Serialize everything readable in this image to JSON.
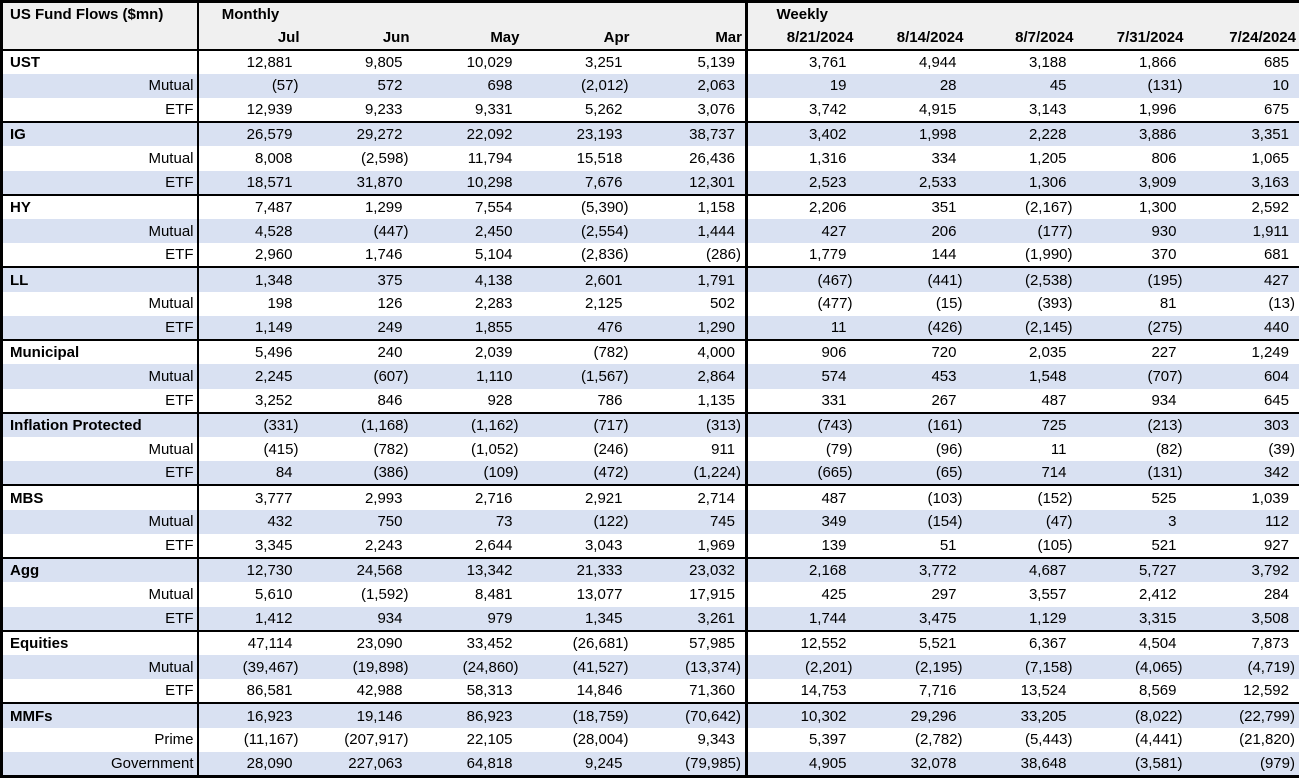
{
  "chart_data": {
    "type": "table",
    "title": "US Fund Flows ($mn)",
    "colors": {
      "header_bg": "#f0f0f0",
      "row_shade": "#d9e1f2",
      "row_plain": "#ffffff",
      "border": "#000000",
      "text": "#000000"
    },
    "column_groups": [
      {
        "label": "Monthly",
        "columns": [
          "Jul",
          "Jun",
          "May",
          "Apr",
          "Mar"
        ]
      },
      {
        "label": "Weekly",
        "columns": [
          "8/21/2024",
          "8/14/2024",
          "8/7/2024",
          "7/31/2024",
          "7/24/2024"
        ]
      }
    ],
    "rows": [
      {
        "label": "UST",
        "level": "group",
        "monthly": [
          "12,881",
          "9,805",
          "10,029",
          "3,251",
          "5,139"
        ],
        "weekly": [
          "3,761",
          "4,944",
          "3,188",
          "1,866",
          "685"
        ]
      },
      {
        "label": "Mutual",
        "level": "sub",
        "monthly": [
          "(57)",
          "572",
          "698",
          "(2,012)",
          "2,063"
        ],
        "weekly": [
          "19",
          "28",
          "45",
          "(131)",
          "10"
        ]
      },
      {
        "label": "ETF",
        "level": "sub",
        "monthly": [
          "12,939",
          "9,233",
          "9,331",
          "5,262",
          "3,076"
        ],
        "weekly": [
          "3,742",
          "4,915",
          "3,143",
          "1,996",
          "675"
        ]
      },
      {
        "label": "IG",
        "level": "group",
        "monthly": [
          "26,579",
          "29,272",
          "22,092",
          "23,193",
          "38,737"
        ],
        "weekly": [
          "3,402",
          "1,998",
          "2,228",
          "3,886",
          "3,351"
        ]
      },
      {
        "label": "Mutual",
        "level": "sub",
        "monthly": [
          "8,008",
          "(2,598)",
          "11,794",
          "15,518",
          "26,436"
        ],
        "weekly": [
          "1,316",
          "334",
          "1,205",
          "806",
          "1,065"
        ]
      },
      {
        "label": "ETF",
        "level": "sub",
        "monthly": [
          "18,571",
          "31,870",
          "10,298",
          "7,676",
          "12,301"
        ],
        "weekly": [
          "2,523",
          "2,533",
          "1,306",
          "3,909",
          "3,163"
        ]
      },
      {
        "label": "HY",
        "level": "group",
        "monthly": [
          "7,487",
          "1,299",
          "7,554",
          "(5,390)",
          "1,158"
        ],
        "weekly": [
          "2,206",
          "351",
          "(2,167)",
          "1,300",
          "2,592"
        ]
      },
      {
        "label": "Mutual",
        "level": "sub",
        "monthly": [
          "4,528",
          "(447)",
          "2,450",
          "(2,554)",
          "1,444"
        ],
        "weekly": [
          "427",
          "206",
          "(177)",
          "930",
          "1,911"
        ]
      },
      {
        "label": "ETF",
        "level": "sub",
        "monthly": [
          "2,960",
          "1,746",
          "5,104",
          "(2,836)",
          "(286)"
        ],
        "weekly": [
          "1,779",
          "144",
          "(1,990)",
          "370",
          "681"
        ]
      },
      {
        "label": "LL",
        "level": "group",
        "monthly": [
          "1,348",
          "375",
          "4,138",
          "2,601",
          "1,791"
        ],
        "weekly": [
          "(467)",
          "(441)",
          "(2,538)",
          "(195)",
          "427"
        ]
      },
      {
        "label": "Mutual",
        "level": "sub",
        "monthly": [
          "198",
          "126",
          "2,283",
          "2,125",
          "502"
        ],
        "weekly": [
          "(477)",
          "(15)",
          "(393)",
          "81",
          "(13)"
        ]
      },
      {
        "label": "ETF",
        "level": "sub",
        "monthly": [
          "1,149",
          "249",
          "1,855",
          "476",
          "1,290"
        ],
        "weekly": [
          "11",
          "(426)",
          "(2,145)",
          "(275)",
          "440"
        ]
      },
      {
        "label": "Municipal",
        "level": "group",
        "monthly": [
          "5,496",
          "240",
          "2,039",
          "(782)",
          "4,000"
        ],
        "weekly": [
          "906",
          "720",
          "2,035",
          "227",
          "1,249"
        ]
      },
      {
        "label": "Mutual",
        "level": "sub",
        "monthly": [
          "2,245",
          "(607)",
          "1,110",
          "(1,567)",
          "2,864"
        ],
        "weekly": [
          "574",
          "453",
          "1,548",
          "(707)",
          "604"
        ]
      },
      {
        "label": "ETF",
        "level": "sub",
        "monthly": [
          "3,252",
          "846",
          "928",
          "786",
          "1,135"
        ],
        "weekly": [
          "331",
          "267",
          "487",
          "934",
          "645"
        ]
      },
      {
        "label": "Inflation Protected",
        "level": "group",
        "monthly": [
          "(331)",
          "(1,168)",
          "(1,162)",
          "(717)",
          "(313)"
        ],
        "weekly": [
          "(743)",
          "(161)",
          "725",
          "(213)",
          "303"
        ]
      },
      {
        "label": "Mutual",
        "level": "sub",
        "monthly": [
          "(415)",
          "(782)",
          "(1,052)",
          "(246)",
          "911"
        ],
        "weekly": [
          "(79)",
          "(96)",
          "11",
          "(82)",
          "(39)"
        ]
      },
      {
        "label": "ETF",
        "level": "sub",
        "monthly": [
          "84",
          "(386)",
          "(109)",
          "(472)",
          "(1,224)"
        ],
        "weekly": [
          "(665)",
          "(65)",
          "714",
          "(131)",
          "342"
        ]
      },
      {
        "label": "MBS",
        "level": "group",
        "monthly": [
          "3,777",
          "2,993",
          "2,716",
          "2,921",
          "2,714"
        ],
        "weekly": [
          "487",
          "(103)",
          "(152)",
          "525",
          "1,039"
        ]
      },
      {
        "label": "Mutual",
        "level": "sub",
        "monthly": [
          "432",
          "750",
          "73",
          "(122)",
          "745"
        ],
        "weekly": [
          "349",
          "(154)",
          "(47)",
          "3",
          "112"
        ]
      },
      {
        "label": "ETF",
        "level": "sub",
        "monthly": [
          "3,345",
          "2,243",
          "2,644",
          "3,043",
          "1,969"
        ],
        "weekly": [
          "139",
          "51",
          "(105)",
          "521",
          "927"
        ]
      },
      {
        "label": "Agg",
        "level": "group",
        "monthly": [
          "12,730",
          "24,568",
          "13,342",
          "21,333",
          "23,032"
        ],
        "weekly": [
          "2,168",
          "3,772",
          "4,687",
          "5,727",
          "3,792"
        ]
      },
      {
        "label": "Mutual",
        "level": "sub",
        "monthly": [
          "5,610",
          "(1,592)",
          "8,481",
          "13,077",
          "17,915"
        ],
        "weekly": [
          "425",
          "297",
          "3,557",
          "2,412",
          "284"
        ]
      },
      {
        "label": "ETF",
        "level": "sub",
        "monthly": [
          "1,412",
          "934",
          "979",
          "1,345",
          "3,261"
        ],
        "weekly": [
          "1,744",
          "3,475",
          "1,129",
          "3,315",
          "3,508"
        ]
      },
      {
        "label": "Equities",
        "level": "group",
        "monthly": [
          "47,114",
          "23,090",
          "33,452",
          "(26,681)",
          "57,985"
        ],
        "weekly": [
          "12,552",
          "5,521",
          "6,367",
          "4,504",
          "7,873"
        ]
      },
      {
        "label": "Mutual",
        "level": "sub",
        "monthly": [
          "(39,467)",
          "(19,898)",
          "(24,860)",
          "(41,527)",
          "(13,374)"
        ],
        "weekly": [
          "(2,201)",
          "(2,195)",
          "(7,158)",
          "(4,065)",
          "(4,719)"
        ]
      },
      {
        "label": "ETF",
        "level": "sub",
        "monthly": [
          "86,581",
          "42,988",
          "58,313",
          "14,846",
          "71,360"
        ],
        "weekly": [
          "14,753",
          "7,716",
          "13,524",
          "8,569",
          "12,592"
        ]
      },
      {
        "label": "MMFs",
        "level": "group",
        "monthly": [
          "16,923",
          "19,146",
          "86,923",
          "(18,759)",
          "(70,642)"
        ],
        "weekly": [
          "10,302",
          "29,296",
          "33,205",
          "(8,022)",
          "(22,799)"
        ]
      },
      {
        "label": "Prime",
        "level": "sub",
        "monthly": [
          "(11,167)",
          "(207,917)",
          "22,105",
          "(28,004)",
          "9,343"
        ],
        "weekly": [
          "5,397",
          "(2,782)",
          "(5,443)",
          "(4,441)",
          "(21,820)"
        ]
      },
      {
        "label": "Government",
        "level": "sub",
        "monthly": [
          "28,090",
          "227,063",
          "64,818",
          "9,245",
          "(79,985)"
        ],
        "weekly": [
          "4,905",
          "32,078",
          "38,648",
          "(3,581)",
          "(979)"
        ]
      }
    ]
  }
}
